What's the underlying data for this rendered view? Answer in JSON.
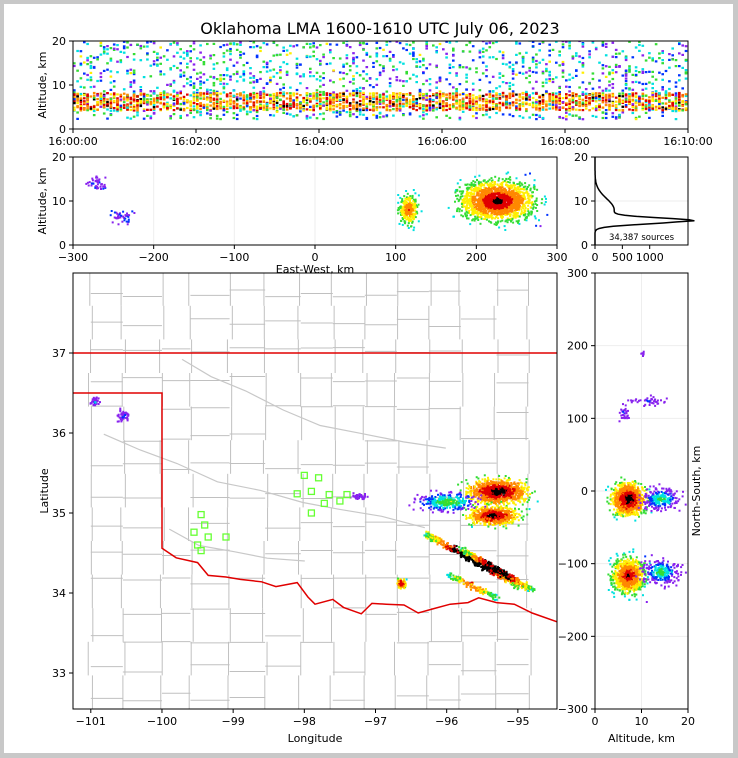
{
  "title": "Oklahoma LMA 1600-1610 UTC July 06, 2023",
  "chart_data": [
    {
      "panel": "time-height",
      "type": "heatmap",
      "ylabel": "Altitude, km",
      "xlabel": "",
      "x_tick_labels": [
        "16:00:00",
        "16:02:00",
        "16:04:00",
        "16:06:00",
        "16:08:00",
        "16:10:00"
      ],
      "xlim": [
        0,
        10
      ],
      "ylim": [
        0,
        20
      ],
      "y_ticks": [
        0,
        10,
        20
      ],
      "main_band_km": [
        4,
        8
      ]
    },
    {
      "panel": "east-west-altitude",
      "type": "heatmap",
      "xlabel": "East-West, km",
      "ylabel": "Altitude, km",
      "xlim": [
        -300,
        300
      ],
      "ylim": [
        0,
        20
      ],
      "x_ticks": [
        -300,
        -200,
        -100,
        0,
        100,
        200,
        300
      ],
      "y_ticks": [
        0,
        10,
        20
      ],
      "clusters": [
        {
          "x_km": 225,
          "alt_km": 10,
          "strength": "high"
        },
        {
          "x_km": 115,
          "alt_km": 8,
          "strength": "medium"
        },
        {
          "x_km": -240,
          "alt_km": 6.5,
          "strength": "low"
        },
        {
          "x_km": -270,
          "alt_km": 14,
          "strength": "low"
        }
      ]
    },
    {
      "panel": "altitude-histogram",
      "type": "line",
      "annotation": "34,387 sources",
      "xlim": [
        0,
        1700
      ],
      "ylim": [
        0,
        20
      ],
      "x_ticks": [
        0,
        500,
        1000
      ],
      "y_ticks": [
        0,
        10,
        20
      ],
      "peak_altitude_km": 5.5,
      "peak_count": 1600
    },
    {
      "panel": "plan-view",
      "type": "heatmap",
      "xlabel": "Longitude",
      "ylabel": "Latitude",
      "xlim": [
        -101.25,
        -94.45
      ],
      "ylim": [
        32.55,
        38.0
      ],
      "x_ticks": [
        -101,
        -100,
        -99,
        -98,
        -97,
        -96,
        -95
      ],
      "y_ticks": [
        33,
        34,
        35,
        36,
        37
      ],
      "border_color": "#e00000",
      "county_color": "#c0c0c0",
      "station_color": "#66ff33",
      "stations": [
        {
          "lon": -98.0,
          "lat": 35.47
        },
        {
          "lon": -97.8,
          "lat": 35.44
        },
        {
          "lon": -98.1,
          "lat": 35.24
        },
        {
          "lon": -97.9,
          "lat": 35.27
        },
        {
          "lon": -97.65,
          "lat": 35.23
        },
        {
          "lon": -97.72,
          "lat": 35.12
        },
        {
          "lon": -97.4,
          "lat": 35.23
        },
        {
          "lon": -97.5,
          "lat": 35.15
        },
        {
          "lon": -97.9,
          "lat": 35.0
        },
        {
          "lon": -99.45,
          "lat": 34.98
        },
        {
          "lon": -99.4,
          "lat": 34.85
        },
        {
          "lon": -99.55,
          "lat": 34.76
        },
        {
          "lon": -99.35,
          "lat": 34.7
        },
        {
          "lon": -99.5,
          "lat": 34.6
        },
        {
          "lon": -99.45,
          "lat": 34.53
        },
        {
          "lon": -99.1,
          "lat": 34.7
        }
      ]
    },
    {
      "panel": "altitude-north-south",
      "type": "heatmap",
      "xlabel": "Altitude, km",
      "ylabel": "North-South, km",
      "xlim": [
        0,
        20
      ],
      "ylim": [
        -300,
        300
      ],
      "x_ticks": [
        0,
        10,
        20
      ],
      "y_ticks": [
        -300,
        -200,
        -100,
        0,
        100,
        200,
        300
      ]
    }
  ]
}
